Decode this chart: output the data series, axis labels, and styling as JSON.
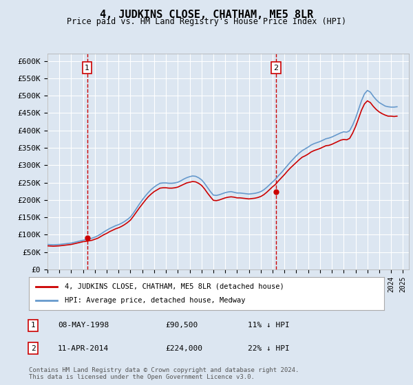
{
  "title": "4, JUDKINS CLOSE, CHATHAM, ME5 8LR",
  "subtitle": "Price paid vs. HM Land Registry's House Price Index (HPI)",
  "ylabel_ticks": [
    "£0",
    "£50K",
    "£100K",
    "£150K",
    "£200K",
    "£250K",
    "£300K",
    "£350K",
    "£400K",
    "£450K",
    "£500K",
    "£550K",
    "£600K"
  ],
  "ytick_values": [
    0,
    50000,
    100000,
    150000,
    200000,
    250000,
    300000,
    350000,
    400000,
    450000,
    500000,
    550000,
    600000
  ],
  "ylim": [
    0,
    620000
  ],
  "xlim_start": 1995.0,
  "xlim_end": 2025.5,
  "background_color": "#dce6f1",
  "plot_bg_color": "#dce6f1",
  "red_line_color": "#cc0000",
  "blue_line_color": "#6699cc",
  "grid_color": "#ffffff",
  "sale1_year": 1998.35,
  "sale1_price": 90500,
  "sale1_label": "1",
  "sale1_date": "08-MAY-1998",
  "sale1_amount": "£90,500",
  "sale1_hpi": "11% ↓ HPI",
  "sale2_year": 2014.27,
  "sale2_price": 224000,
  "sale2_label": "2",
  "sale2_date": "11-APR-2014",
  "sale2_amount": "£224,000",
  "sale2_hpi": "22% ↓ HPI",
  "legend_line1": "4, JUDKINS CLOSE, CHATHAM, ME5 8LR (detached house)",
  "legend_line2": "HPI: Average price, detached house, Medway",
  "footer": "Contains HM Land Registry data © Crown copyright and database right 2024.\nThis data is licensed under the Open Government Licence v3.0.",
  "hpi_data": {
    "years": [
      1995.0,
      1995.25,
      1995.5,
      1995.75,
      1996.0,
      1996.25,
      1996.5,
      1996.75,
      1997.0,
      1997.25,
      1997.5,
      1997.75,
      1998.0,
      1998.25,
      1998.5,
      1998.75,
      1999.0,
      1999.25,
      1999.5,
      1999.75,
      2000.0,
      2000.25,
      2000.5,
      2000.75,
      2001.0,
      2001.25,
      2001.5,
      2001.75,
      2002.0,
      2002.25,
      2002.5,
      2002.75,
      2003.0,
      2003.25,
      2003.5,
      2003.75,
      2004.0,
      2004.25,
      2004.5,
      2004.75,
      2005.0,
      2005.25,
      2005.5,
      2005.75,
      2006.0,
      2006.25,
      2006.5,
      2006.75,
      2007.0,
      2007.25,
      2007.5,
      2007.75,
      2008.0,
      2008.25,
      2008.5,
      2008.75,
      2009.0,
      2009.25,
      2009.5,
      2009.75,
      2010.0,
      2010.25,
      2010.5,
      2010.75,
      2011.0,
      2011.25,
      2011.5,
      2011.75,
      2012.0,
      2012.25,
      2012.5,
      2012.75,
      2013.0,
      2013.25,
      2013.5,
      2013.75,
      2014.0,
      2014.25,
      2014.5,
      2014.75,
      2015.0,
      2015.25,
      2015.5,
      2015.75,
      2016.0,
      2016.25,
      2016.5,
      2016.75,
      2017.0,
      2017.25,
      2017.5,
      2017.75,
      2018.0,
      2018.25,
      2018.5,
      2018.75,
      2019.0,
      2019.25,
      2019.5,
      2019.75,
      2020.0,
      2020.25,
      2020.5,
      2020.75,
      2021.0,
      2021.25,
      2021.5,
      2021.75,
      2022.0,
      2022.25,
      2022.5,
      2022.75,
      2023.0,
      2023.25,
      2023.5,
      2023.75,
      2024.0,
      2024.25,
      2024.5
    ],
    "values": [
      72000,
      71500,
      71000,
      71500,
      72000,
      73000,
      74000,
      75000,
      76000,
      78000,
      80000,
      82000,
      84000,
      86000,
      88000,
      90000,
      93000,
      97000,
      102000,
      108000,
      113000,
      118000,
      122000,
      126000,
      129000,
      133000,
      138000,
      144000,
      151000,
      162000,
      175000,
      188000,
      200000,
      211000,
      221000,
      230000,
      237000,
      243000,
      248000,
      249000,
      249000,
      248000,
      248000,
      249000,
      251000,
      255000,
      260000,
      264000,
      267000,
      269000,
      268000,
      264000,
      258000,
      248000,
      236000,
      224000,
      214000,
      213000,
      215000,
      218000,
      221000,
      223000,
      224000,
      222000,
      220000,
      220000,
      219000,
      218000,
      217000,
      218000,
      219000,
      221000,
      224000,
      229000,
      236000,
      244000,
      252000,
      260000,
      270000,
      279000,
      289000,
      299000,
      309000,
      318000,
      327000,
      335000,
      342000,
      347000,
      352000,
      358000,
      362000,
      365000,
      368000,
      372000,
      376000,
      378000,
      381000,
      385000,
      389000,
      393000,
      396000,
      395000,
      399000,
      415000,
      435000,
      460000,
      485000,
      505000,
      515000,
      510000,
      498000,
      488000,
      480000,
      475000,
      470000,
      468000,
      467000,
      467000,
      468000
    ]
  },
  "price_paid_data": {
    "years": [
      1995.0,
      1995.25,
      1995.5,
      1995.75,
      1996.0,
      1996.25,
      1996.5,
      1996.75,
      1997.0,
      1997.25,
      1997.5,
      1997.75,
      1998.0,
      1998.25,
      1998.5,
      1998.75,
      1999.0,
      1999.25,
      1999.5,
      1999.75,
      2000.0,
      2000.25,
      2000.5,
      2000.75,
      2001.0,
      2001.25,
      2001.5,
      2001.75,
      2002.0,
      2002.25,
      2002.5,
      2002.75,
      2003.0,
      2003.25,
      2003.5,
      2003.75,
      2004.0,
      2004.25,
      2004.5,
      2004.75,
      2005.0,
      2005.25,
      2005.5,
      2005.75,
      2006.0,
      2006.25,
      2006.5,
      2006.75,
      2007.0,
      2007.25,
      2007.5,
      2007.75,
      2008.0,
      2008.25,
      2008.5,
      2008.75,
      2009.0,
      2009.25,
      2009.5,
      2009.75,
      2010.0,
      2010.25,
      2010.5,
      2010.75,
      2011.0,
      2011.25,
      2011.5,
      2011.75,
      2012.0,
      2012.25,
      2012.5,
      2012.75,
      2013.0,
      2013.25,
      2013.5,
      2013.75,
      2014.0,
      2014.25,
      2014.5,
      2014.75,
      2015.0,
      2015.25,
      2015.5,
      2015.75,
      2016.0,
      2016.25,
      2016.5,
      2016.75,
      2017.0,
      2017.25,
      2017.5,
      2017.75,
      2018.0,
      2018.25,
      2018.5,
      2018.75,
      2019.0,
      2019.25,
      2019.5,
      2019.75,
      2020.0,
      2020.25,
      2020.5,
      2020.75,
      2021.0,
      2021.25,
      2021.5,
      2021.75,
      2022.0,
      2022.25,
      2022.5,
      2022.75,
      2023.0,
      2023.25,
      2023.5,
      2023.75,
      2024.0,
      2024.25,
      2024.5
    ],
    "values": [
      68000,
      67500,
      67000,
      67500,
      68000,
      69000,
      70000,
      71000,
      72000,
      74000,
      76000,
      78000,
      80000,
      81000,
      82500,
      84000,
      87000,
      90000,
      95000,
      100000,
      104000,
      109000,
      113000,
      117000,
      120000,
      124000,
      129000,
      135000,
      142000,
      153000,
      165000,
      177000,
      188000,
      199000,
      209000,
      217000,
      224000,
      229000,
      234000,
      235000,
      235000,
      234000,
      234000,
      235000,
      237000,
      241000,
      245000,
      249000,
      251000,
      253000,
      252000,
      248000,
      242000,
      232000,
      220000,
      209000,
      199000,
      198000,
      200000,
      203000,
      206000,
      208000,
      209000,
      208000,
      206000,
      206000,
      205000,
      204000,
      203000,
      204000,
      205000,
      207000,
      210000,
      215000,
      222000,
      230000,
      238000,
      245000,
      255000,
      264000,
      273000,
      283000,
      292000,
      300000,
      308000,
      316000,
      323000,
      327000,
      332000,
      338000,
      342000,
      345000,
      348000,
      352000,
      356000,
      357000,
      360000,
      364000,
      368000,
      372000,
      374000,
      373000,
      377000,
      392000,
      411000,
      434000,
      458000,
      476000,
      485000,
      480000,
      469000,
      460000,
      453000,
      448000,
      444000,
      441000,
      441000,
      440000,
      441000
    ]
  }
}
